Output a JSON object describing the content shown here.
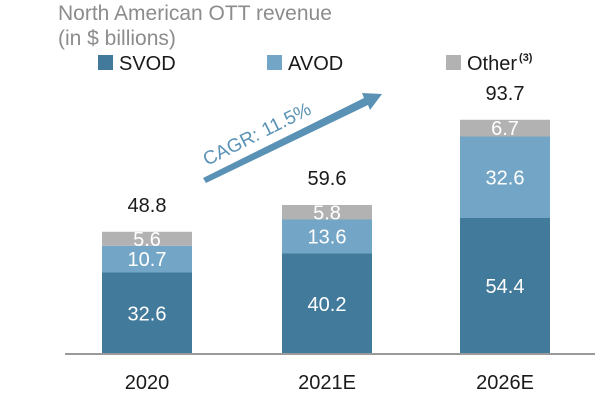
{
  "chart_data": {
    "type": "bar",
    "stacked": true,
    "title": "North American OTT revenue",
    "subtitle": "(in $ billions)",
    "categories": [
      "2020",
      "2021E",
      "2026E"
    ],
    "series": [
      {
        "name": "SVOD",
        "values": [
          32.6,
          40.2,
          54.4
        ],
        "labels": [
          "32.6",
          "40.2",
          "54.4"
        ]
      },
      {
        "name": "AVOD",
        "values": [
          10.7,
          13.6,
          32.6
        ],
        "labels": [
          "10.7",
          "13.6",
          "32.6"
        ]
      },
      {
        "name": "Other",
        "superscript": "(3)",
        "values": [
          5.6,
          5.8,
          6.7
        ],
        "labels": [
          "5.6",
          "5.8",
          "6.7"
        ]
      }
    ],
    "totals": [
      48.8,
      59.6,
      93.7
    ],
    "total_labels": [
      "48.8",
      "59.6",
      "93.7"
    ],
    "ylim": [
      0,
      100
    ],
    "annotation": "CAGR: 11.5%",
    "legend_position": "top",
    "grid": false
  },
  "colors": {
    "svod": "#417a9b",
    "avod": "#73a6c6",
    "other": "#b2b2b2",
    "cagr": "#5a92b6",
    "axis": "#9a9a9a"
  }
}
